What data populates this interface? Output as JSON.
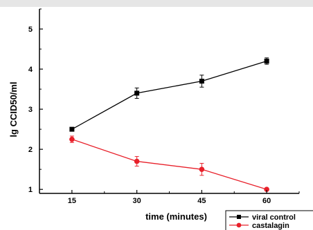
{
  "chart_data": {
    "type": "line",
    "title": "",
    "xlabel": "time (minutes)",
    "ylabel": "lg CCID50/ml",
    "x": [
      15,
      30,
      45,
      60
    ],
    "xlim": [
      7.5,
      67.5
    ],
    "ylim": [
      0.9,
      5.5
    ],
    "xticks": [
      "15",
      "30",
      "45",
      "60"
    ],
    "yticks": [
      "1",
      "2",
      "3",
      "4",
      "5"
    ],
    "grid": false,
    "legend_position": "bottom-right",
    "series": [
      {
        "name": "viral control",
        "color": "#000000",
        "marker": "square",
        "values": [
          2.5,
          3.4,
          3.7,
          4.2
        ],
        "errors": [
          0.03,
          0.13,
          0.15,
          0.08
        ]
      },
      {
        "name": "castalagin",
        "color": "#e8202a",
        "marker": "circle",
        "values": [
          2.25,
          1.7,
          1.5,
          1.0
        ],
        "errors": [
          0.08,
          0.12,
          0.15,
          0.02
        ]
      }
    ]
  }
}
